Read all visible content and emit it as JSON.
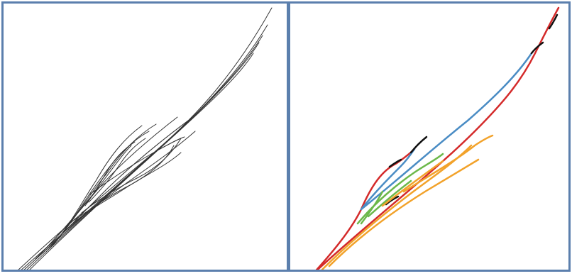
{
  "colors": {
    "border": "#5b7fad",
    "background": "#ffffff",
    "left_lines": "#333333",
    "red": "#d42a2a",
    "blue": "#4a8cc4",
    "black": "#111111",
    "green": "#6cb84a",
    "orange": "#f2a22a"
  },
  "panels": [
    {
      "name": "left",
      "description_visible_text": ""
    },
    {
      "name": "right",
      "description_visible_text": ""
    }
  ]
}
